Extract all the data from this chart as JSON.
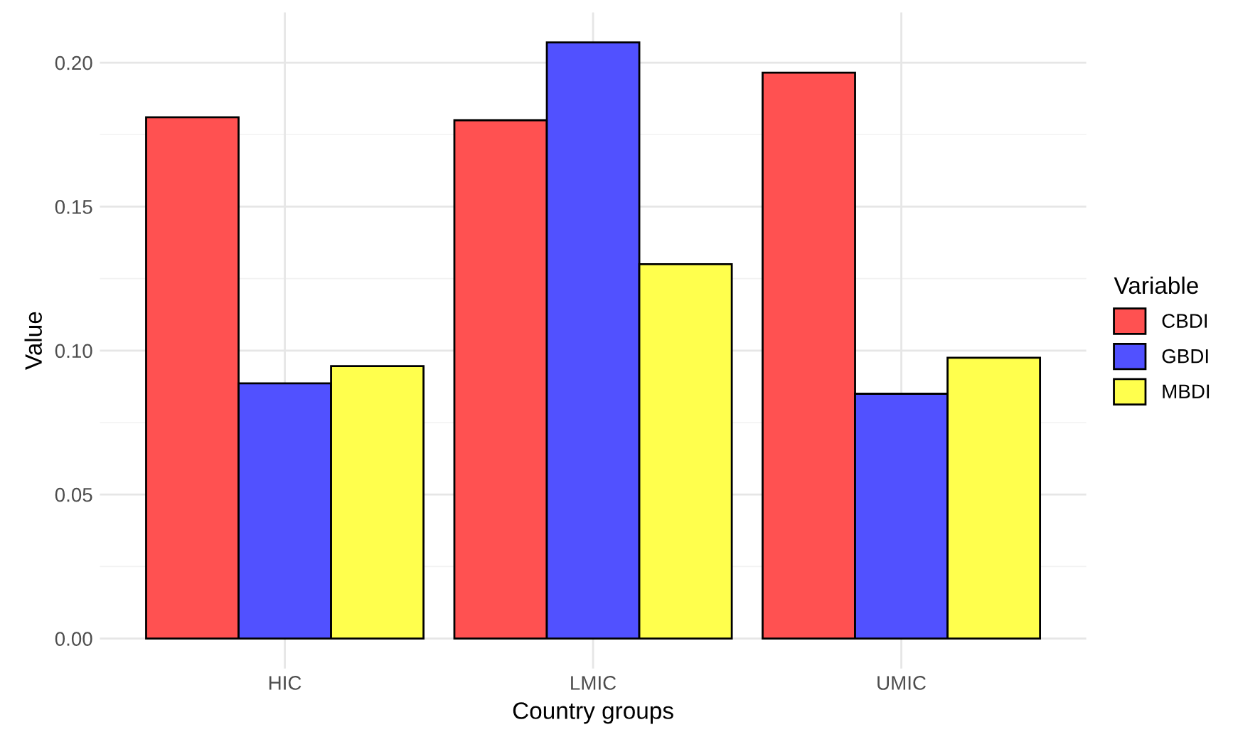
{
  "chart_data": {
    "type": "bar",
    "xlabel": "Country groups",
    "ylabel": "Value",
    "legend_title": "Variable",
    "categories": [
      "HIC",
      "LMIC",
      "UMIC"
    ],
    "series": [
      {
        "name": "CBDI",
        "color": "#ff5151",
        "values": [
          0.181,
          0.18,
          0.1965
        ]
      },
      {
        "name": "GBDI",
        "color": "#5151ff",
        "values": [
          0.0886,
          0.207,
          0.085
        ]
      },
      {
        "name": "MBDI",
        "color": "#ffff4d",
        "values": [
          0.0946,
          0.13,
          0.0975
        ]
      }
    ],
    "ylim": [
      -0.0104,
      0.2174
    ],
    "yticks": [
      {
        "value": 0,
        "label": "0.00"
      },
      {
        "value": 0.025,
        "label": null
      },
      0.05,
      {
        "value": 0.075,
        "label": null
      },
      {
        "value": 0.1,
        "label": "0.10"
      },
      {
        "value": 0.125,
        "label": null
      },
      0.15,
      {
        "value": 0.175,
        "label": null
      },
      {
        "value": 0.2,
        "label": "0.20"
      }
    ],
    "grid": true,
    "legend": "right"
  }
}
